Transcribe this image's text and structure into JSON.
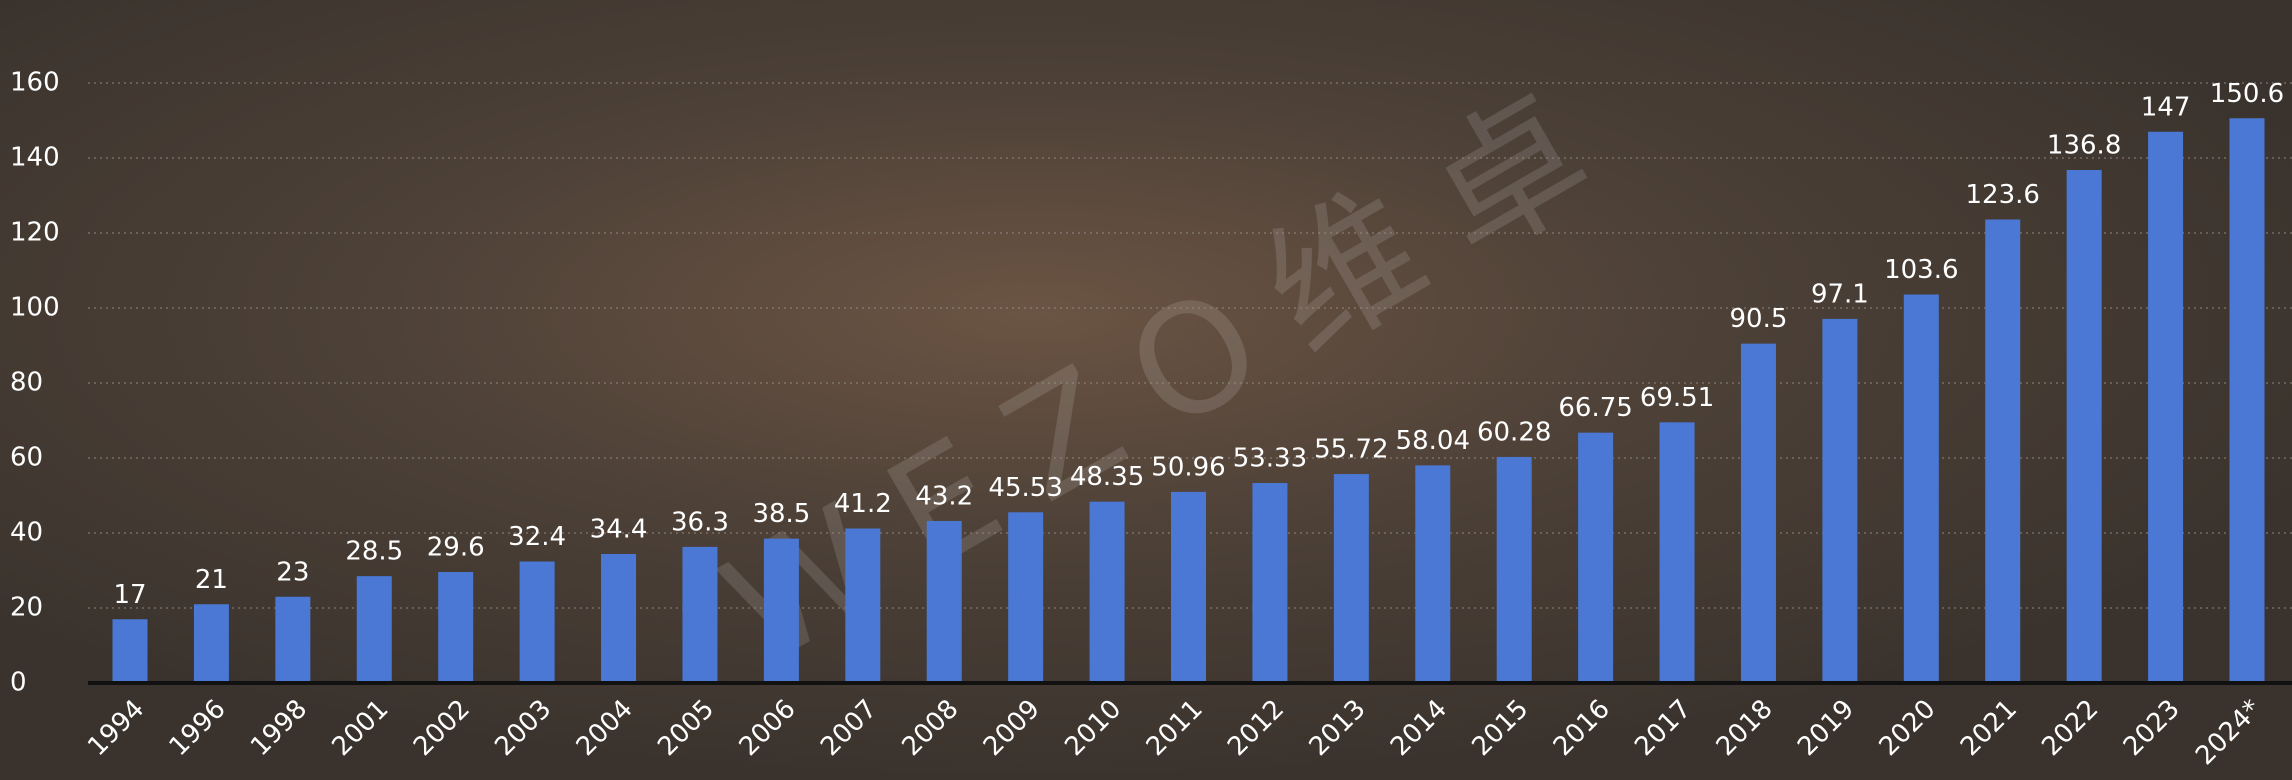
{
  "chart_data": {
    "type": "bar",
    "watermark": "WEZO维卓",
    "categories": [
      "1994",
      "1996",
      "1998",
      "2001",
      "2002",
      "2003",
      "2004",
      "2005",
      "2006",
      "2007",
      "2008",
      "2009",
      "2010",
      "2011",
      "2012",
      "2013",
      "2014",
      "2015",
      "2016",
      "2017",
      "2018",
      "2019",
      "2020",
      "2021",
      "2022",
      "2023",
      "2024*"
    ],
    "values": [
      17,
      21,
      23,
      28.5,
      29.6,
      32.4,
      34.4,
      36.3,
      38.5,
      41.2,
      43.2,
      45.53,
      48.35,
      50.96,
      53.33,
      55.72,
      58.04,
      60.28,
      66.75,
      69.51,
      90.5,
      97.1,
      103.6,
      123.6,
      136.8,
      147,
      150.6
    ],
    "color": "#4a78d4",
    "ylim": [
      0,
      160
    ],
    "yticks": [
      0,
      20,
      40,
      60,
      80,
      100,
      120,
      140,
      160
    ],
    "grid": true
  }
}
